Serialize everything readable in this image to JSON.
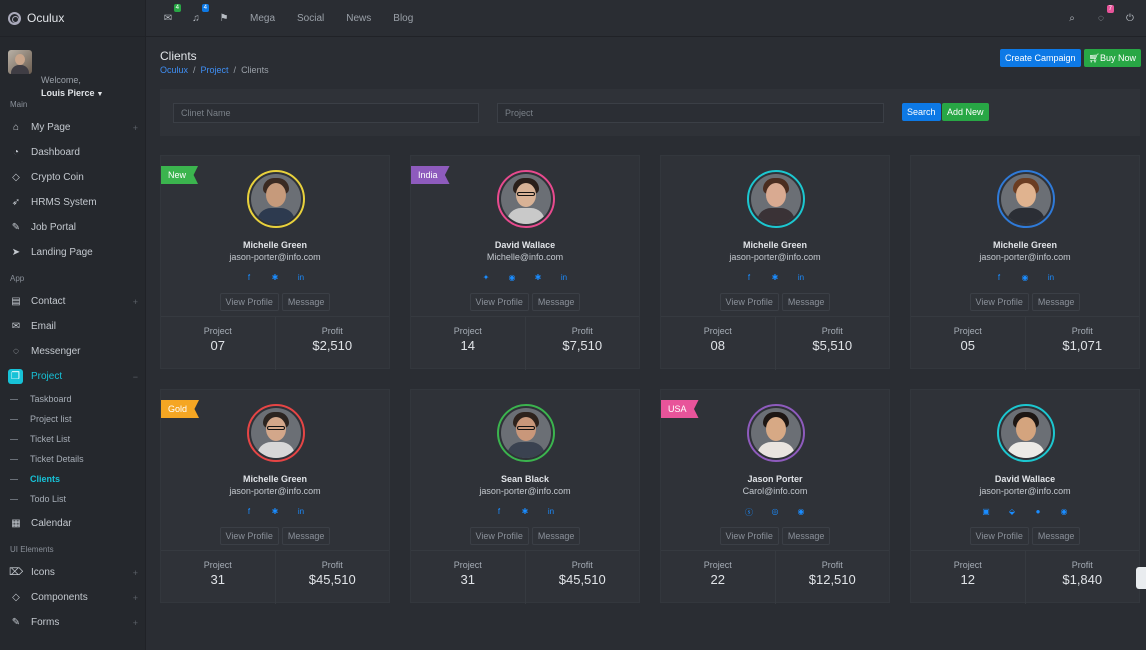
{
  "brand": "Oculux",
  "user": {
    "welcome": "Welcome,",
    "name": "Louis Pierce"
  },
  "sidebar": {
    "sections": [
      "Main",
      "App",
      "UI Elements"
    ],
    "main_items": [
      {
        "label": "My Page",
        "icon": "home-icon"
      },
      {
        "label": "Dashboard",
        "icon": "speedometer-icon"
      },
      {
        "label": "Crypto Coin",
        "icon": "diamond-icon"
      },
      {
        "label": "HRMS System",
        "icon": "rocket-icon"
      },
      {
        "label": "Job Portal",
        "icon": "briefcase-icon"
      },
      {
        "label": "Landing Page",
        "icon": "paper-plane-icon"
      }
    ],
    "app_items": [
      {
        "label": "Contact",
        "icon": "contact-icon"
      },
      {
        "label": "Email",
        "icon": "envelope-icon"
      },
      {
        "label": "Messenger",
        "icon": "chat-icon"
      },
      {
        "label": "Project",
        "icon": "project-icon"
      }
    ],
    "project_sub": [
      "Taskboard",
      "Project list",
      "Ticket List",
      "Ticket Details",
      "Clients",
      "Todo List"
    ],
    "calendar": "Calendar",
    "ui_items": [
      {
        "label": "Icons",
        "icon": "tag-icon"
      },
      {
        "label": "Components",
        "icon": "diamond-icon"
      },
      {
        "label": "Forms",
        "icon": "pencil-icon"
      }
    ]
  },
  "topbar": {
    "mail_badge": "4",
    "bell_badge": "4",
    "links": [
      "Mega",
      "Social",
      "News",
      "Blog"
    ],
    "chat_badge": "7",
    "colors": {
      "mail": "#28a745",
      "bell": "#0d79e6",
      "chat": "#e8549a"
    }
  },
  "page": {
    "title": "Clients",
    "breadcrumb": [
      "Oculux",
      "Project",
      "Clients"
    ],
    "create_campaign": "Create Campaign",
    "buy_now": "Buy Now"
  },
  "search": {
    "client_placeholder": "Clinet Name",
    "project_placeholder": "Project",
    "search_label": "Search",
    "add_new_label": "Add New"
  },
  "card_labels": {
    "view_profile": "View Profile",
    "message": "Message",
    "project": "Project",
    "profit": "Profit"
  },
  "cards": [
    {
      "ribbon": "New",
      "ribbon_color": "#3bb44e",
      "ring": "#e8d13c",
      "name": "Michelle Green",
      "email": "jason-porter@info.com",
      "socials": [
        "f",
        "✱",
        "in"
      ],
      "project": "07",
      "profit": "$2,510",
      "skin": "#c69a7b",
      "hair": "#3a2a22",
      "shirt": "#2d3a4f",
      "glasses": false
    },
    {
      "ribbon": "India",
      "ribbon_color": "#8e5bbd",
      "ring": "#e84a8e",
      "name": "David Wallace",
      "email": "Michelle@info.com",
      "socials": [
        "✦",
        "◉",
        "✱",
        "in"
      ],
      "project": "14",
      "profit": "$7,510",
      "skin": "#d8b296",
      "hair": "#2a1f1a",
      "shirt": "#c9c9c9",
      "glasses": true
    },
    {
      "ribbon": "",
      "ribbon_color": "",
      "ring": "#1cc7d0",
      "name": "Michelle Green",
      "email": "jason-porter@info.com",
      "socials": [
        "f",
        "✱",
        "in"
      ],
      "project": "08",
      "profit": "$5,510",
      "skin": "#d9aa91",
      "hair": "#4a2d20",
      "shirt": "#3a3236",
      "glasses": false
    },
    {
      "ribbon": "",
      "ribbon_color": "",
      "ring": "#2f7ad8",
      "name": "Michelle Green",
      "email": "jason-porter@info.com",
      "socials": [
        "f",
        "◉",
        "in"
      ],
      "project": "05",
      "profit": "$1,071",
      "skin": "#e0b38f",
      "hair": "#6b3d22",
      "shirt": "#2b2e35",
      "glasses": false
    },
    {
      "ribbon": "Gold",
      "ribbon_color": "#f5a623",
      "ring": "#e64545",
      "name": "Michelle Green",
      "email": "jason-porter@info.com",
      "socials": [
        "f",
        "✱",
        "in"
      ],
      "project": "31",
      "profit": "$45,510",
      "skin": "#d3a78a",
      "hair": "#2b2420",
      "shirt": "#d7d7d7",
      "glasses": true
    },
    {
      "ribbon": "",
      "ribbon_color": "",
      "ring": "#3bb44e",
      "name": "Sean Black",
      "email": "jason-porter@info.com",
      "socials": [
        "f",
        "✱",
        "in"
      ],
      "project": "31",
      "profit": "$45,510",
      "skin": "#c9977a",
      "hair": "#2d221c",
      "shirt": "#3a4250",
      "glasses": true
    },
    {
      "ribbon": "USA",
      "ribbon_color": "#e8549a",
      "ring": "#8e5bbd",
      "name": "Jason Porter",
      "email": "Carol@info.com",
      "socials": [
        "ⓢ",
        "◎",
        "◉"
      ],
      "project": "22",
      "profit": "$12,510",
      "skin": "#d7a985",
      "hair": "#1d1613",
      "shirt": "#e9e4df",
      "glasses": false
    },
    {
      "ribbon": "",
      "ribbon_color": "",
      "ring": "#1cc7d0",
      "name": "David Wallace",
      "email": "jason-porter@info.com",
      "socials": [
        "▣",
        "⬙",
        "●",
        "◉"
      ],
      "project": "12",
      "profit": "$1,840",
      "skin": "#d4a47e",
      "hair": "#1d1613",
      "shirt": "#eceae6",
      "glasses": false
    }
  ]
}
